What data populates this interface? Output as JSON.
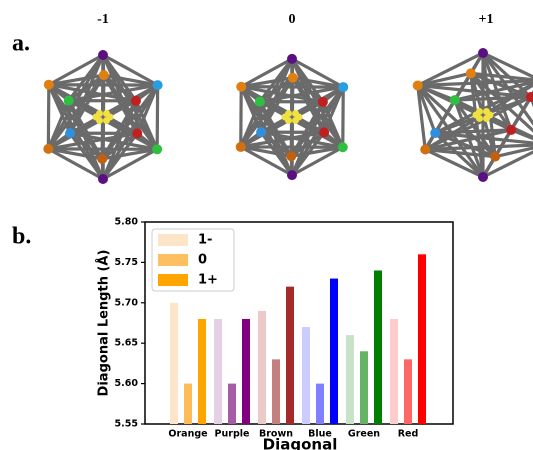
{
  "panel_labels": [
    "a.",
    "b."
  ],
  "structure_labels": [
    "-1",
    "0",
    "+1"
  ],
  "chart_data": {
    "type": "bar",
    "xlabel": "Diagonal",
    "ylabel": "Diagonal Length (Å)",
    "categories": [
      "Orange",
      "Purple",
      "Brown",
      "Blue",
      "Green",
      "Red"
    ],
    "series": [
      {
        "name": "1-",
        "color": "#fde5c7",
        "colors": [
          "#fce5c9",
          "#e6d0e6",
          "#eccaca",
          "#ccccff",
          "#c9e3c9",
          "#ffcccc"
        ],
        "values": [
          5.7,
          5.68,
          5.69,
          5.67,
          5.66,
          5.68
        ]
      },
      {
        "name": "0",
        "color": "#fcc060",
        "colors": [
          "#fdbb5a",
          "#a65ca6",
          "#c47f7f",
          "#7f7fff",
          "#66b366",
          "#ff6666"
        ],
        "values": [
          5.6,
          5.6,
          5.63,
          5.6,
          5.64,
          5.63
        ]
      },
      {
        "name": "1+",
        "color": "#ffa500",
        "colors": [
          "#ffa500",
          "#800080",
          "#a52a2a",
          "#0000ff",
          "#008000",
          "#ff0000"
        ],
        "values": [
          5.68,
          5.68,
          5.72,
          5.73,
          5.74,
          5.76
        ]
      }
    ],
    "ylim": [
      5.55,
      5.8
    ],
    "yticks": [
      5.55,
      {
        "value": 5.6,
        "label": "5.60"
      },
      5.65,
      {
        "value": 5.7,
        "label": "5.70"
      },
      5.75,
      {
        "value": 5.8,
        "label": "5.80"
      }
    ],
    "legend": "upper left"
  }
}
